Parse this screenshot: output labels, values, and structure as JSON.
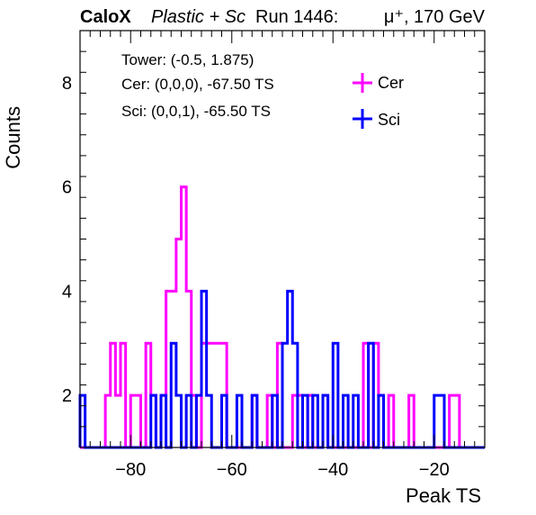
{
  "header": {
    "brand": "CaloX",
    "subtitle": "Plastic + Sc",
    "run": "Run 1446:",
    "beam": "μ⁺, 170 GeV"
  },
  "info": {
    "tower": "Tower: (-0.5, 1.875)",
    "cer": "Cer: (0,0,0), -67.50 TS",
    "sci": "Sci: (0,0,1), -65.50 TS"
  },
  "chart_data": {
    "type": "histogram",
    "xlabel": "Peak TS",
    "ylabel": "Counts",
    "xlim": [
      -90,
      -10
    ],
    "ylim": [
      1,
      9
    ],
    "bin_width": 1,
    "x_ticks": [
      -80,
      -60,
      -40,
      -20
    ],
    "x_tick_labels": [
      "−80",
      "−60",
      "−40",
      "−20"
    ],
    "y_ticks": [
      2,
      4,
      6,
      8
    ],
    "y_tick_labels": [
      "2",
      "4",
      "6",
      "8"
    ],
    "legend_placement": "top-right",
    "grid": false,
    "series": [
      {
        "name": "Cer",
        "color": "#ff00ff",
        "bin_edges": [
          -90,
          -85,
          -84,
          -83,
          -82,
          -81,
          -80,
          -78,
          -77,
          -76,
          -75,
          -74,
          -73,
          -72,
          -71,
          -70,
          -69,
          -68,
          -67,
          -66,
          -61,
          -60,
          -56,
          -55,
          -53,
          -52,
          -51,
          -50,
          -49,
          -48,
          -47,
          -46,
          -45,
          -44,
          -43,
          -42,
          -41,
          -34,
          -33,
          -32,
          -31,
          -30,
          -29,
          -28,
          -25,
          -24,
          -17,
          -16,
          -15,
          -10
        ],
        "counts": [
          1,
          2,
          3,
          2,
          3,
          1,
          2,
          1,
          3,
          2,
          1,
          2,
          4,
          4,
          5,
          6,
          4,
          2,
          1,
          3,
          1,
          1,
          2,
          1,
          2,
          1,
          3,
          1,
          1,
          2,
          2,
          1,
          2,
          1,
          1,
          2,
          1,
          3,
          1,
          3,
          2,
          1,
          2,
          1,
          2,
          1,
          2,
          2,
          1
        ]
      },
      {
        "name": "Sci",
        "color": "#0000ff",
        "bin_edges": [
          -90,
          -89,
          -88,
          -76,
          -75,
          -74,
          -73,
          -72,
          -71,
          -70,
          -69,
          -68,
          -67,
          -66,
          -65,
          -64,
          -62,
          -61,
          -59,
          -58,
          -56,
          -55,
          -52,
          -51,
          -50,
          -49,
          -48,
          -47,
          -46,
          -45,
          -44,
          -43,
          -42,
          -41,
          -40,
          -39,
          -38,
          -37,
          -36,
          -35,
          -34,
          -33,
          -32,
          -31,
          -30,
          -20,
          -18,
          -10
        ],
        "counts": [
          2,
          1,
          1,
          2,
          1,
          2,
          1,
          3,
          2,
          1,
          2,
          1,
          2,
          4,
          2,
          1,
          2,
          1,
          2,
          1,
          2,
          1,
          2,
          1,
          3,
          4,
          3,
          1,
          2,
          1,
          2,
          1,
          2,
          1,
          3,
          1,
          2,
          1,
          2,
          1,
          1,
          3,
          1,
          2,
          1,
          2,
          1
        ]
      }
    ]
  }
}
